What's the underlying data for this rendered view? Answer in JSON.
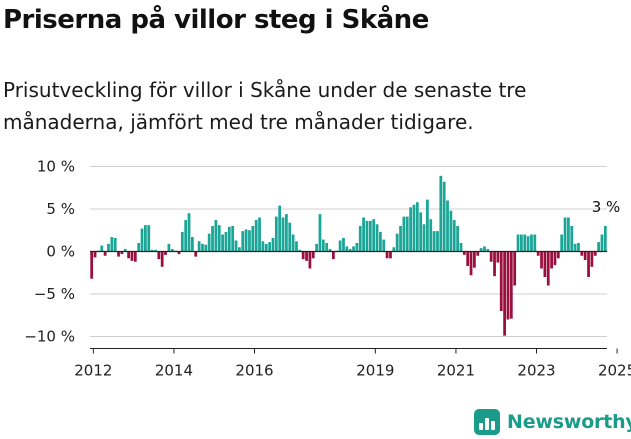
{
  "title": "Priserna på villor steg i Skåne",
  "subtitle": "Prisutveckling för villor i Skåne under de senaste tre månaderna, jämfört med tre månader tidigare.",
  "brand": "Newsworthy",
  "colors": {
    "positive": "#1aa597",
    "negative": "#9a0f3d",
    "axis": "#222222",
    "grid": "#cfcfcf"
  },
  "chart_data": {
    "type": "bar",
    "x_start": "2011-12",
    "x_unit": "month",
    "ylim": [
      -10.5,
      10.5
    ],
    "y_ticks": [
      10,
      5,
      0,
      -5,
      -10
    ],
    "y_tick_labels": [
      "10 %",
      "5 %",
      "0 %",
      "−5 %",
      "−10 %"
    ],
    "x_ticks": [
      "2012",
      "2014",
      "2016",
      "2019",
      "2021",
      "2023",
      "2025"
    ],
    "annotation": "3 %",
    "values": [
      -3.2,
      -0.7,
      0.1,
      0.7,
      -0.5,
      0.9,
      1.7,
      1.6,
      -0.6,
      -0.3,
      0.3,
      -0.8,
      -1.1,
      -1.2,
      1.0,
      2.7,
      3.1,
      3.1,
      0.2,
      0.2,
      -0.9,
      -1.8,
      -0.4,
      0.9,
      0.3,
      0.1,
      -0.3,
      2.3,
      3.7,
      4.5,
      1.7,
      -0.6,
      1.2,
      0.9,
      0.8,
      2.1,
      3.0,
      3.7,
      3.1,
      2.0,
      2.3,
      2.9,
      3.0,
      1.3,
      0.5,
      2.4,
      2.6,
      2.5,
      3.0,
      3.7,
      4.0,
      1.2,
      0.9,
      1.1,
      1.6,
      4.1,
      5.4,
      4.0,
      4.4,
      3.4,
      2.0,
      1.2,
      0.2,
      -0.9,
      -1.1,
      -2.0,
      -0.8,
      0.9,
      4.4,
      1.4,
      1.0,
      0.3,
      -0.9,
      0.1,
      1.3,
      1.6,
      0.6,
      0.3,
      0.6,
      1.0,
      3.0,
      4.0,
      3.6,
      3.6,
      3.8,
      3.2,
      2.3,
      1.4,
      -0.8,
      -0.8,
      0.5,
      2.1,
      3.0,
      4.1,
      4.1,
      5.2,
      5.5,
      5.8,
      4.6,
      3.2,
      6.1,
      3.8,
      2.4,
      2.4,
      8.9,
      8.2,
      6.0,
      4.8,
      3.7,
      3.0,
      1.0,
      -0.4,
      -1.7,
      -2.8,
      -1.9,
      -0.5,
      0.4,
      0.6,
      0.3,
      -1.2,
      -2.9,
      -1.3,
      -7.0,
      -9.9,
      -8.0,
      -7.9,
      -4.0,
      2.0,
      2.0,
      2.0,
      1.8,
      2.0,
      2.0,
      -0.5,
      -2.0,
      -3.0,
      -4.0,
      -2.0,
      -1.6,
      -0.8,
      2.0,
      4.0,
      4.0,
      3.0,
      0.9,
      1.0,
      -0.5,
      -1.0,
      -3.0,
      -1.8,
      -0.5,
      1.1,
      2.0,
      3.0
    ]
  }
}
